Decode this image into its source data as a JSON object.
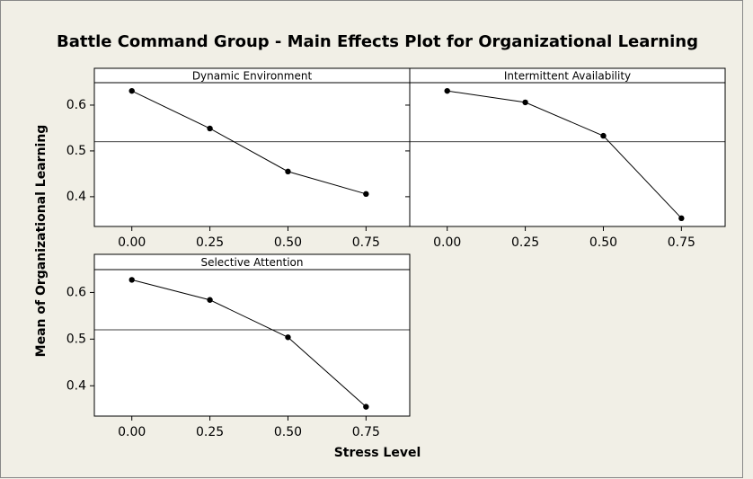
{
  "chart_data": {
    "type": "line",
    "title": "Battle Command Group - Main Effects Plot for Organizational Learning",
    "xlabel": "Stress Level",
    "ylabel": "Mean of Organizational Learning",
    "xlim": [
      -0.12,
      0.89
    ],
    "ylim": [
      0.335,
      0.649
    ],
    "xticks": [
      {
        "value": 0,
        "label": "0.00"
      },
      {
        "value": 0.25,
        "label": "0.25"
      },
      {
        "value": 0.5,
        "label": "0.50"
      },
      {
        "value": 0.75,
        "label": "0.75"
      }
    ],
    "yticks": [
      0.4,
      0.5,
      0.6
    ],
    "reference_line": 0.52,
    "color": "#000000",
    "panels": [
      {
        "name": "Dynamic Environment",
        "x": [
          0,
          0.25,
          0.5,
          0.75
        ],
        "values": [
          0.631,
          0.549,
          0.455,
          0.406
        ]
      },
      {
        "name": "Intermittent Availability",
        "x": [
          0,
          0.25,
          0.5,
          0.75
        ],
        "values": [
          0.631,
          0.606,
          0.533,
          0.353
        ]
      },
      {
        "name": "Selective Attention",
        "x": [
          0,
          0.25,
          0.5,
          0.75
        ],
        "values": [
          0.627,
          0.584,
          0.504,
          0.355
        ]
      }
    ]
  }
}
